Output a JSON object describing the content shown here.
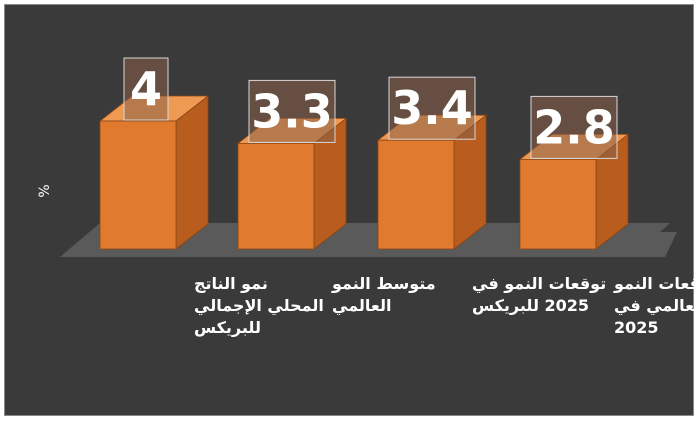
{
  "chart_data": {
    "type": "bar",
    "style": "3d-column",
    "ylabel": "%",
    "categories": [
      [
        "نمو الناتج",
        "المحلي الإجمالي",
        "للبريكس"
      ],
      [
        "متوسط النمو",
        "العالمي"
      ],
      [
        "توقعات النمو في",
        "2025 للبريكس"
      ],
      [
        "توقعات النمو",
        "العالمي في",
        "2025"
      ]
    ],
    "values": [
      4,
      3.3,
      3.4,
      2.8
    ],
    "data_labels": [
      "4",
      "3.3",
      "3.4",
      "2.8"
    ],
    "colors": {
      "bar_front": "#e07a2e",
      "bar_side": "#b85d1e",
      "bar_top": "#ee9a52",
      "floor": "#5a5a5a",
      "background": "#3a3a3a",
      "label_box_border": "#d8d8d8",
      "label_box_fill": "#8a6048"
    }
  }
}
